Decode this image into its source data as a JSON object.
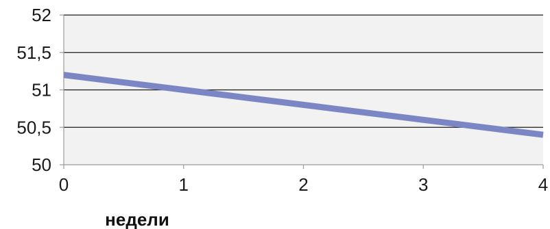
{
  "chart_data": {
    "type": "line",
    "title": "",
    "xlabel": "недели",
    "ylabel": "",
    "x": [
      0,
      1,
      2,
      3,
      4
    ],
    "series": [
      {
        "values": [
          51.2,
          51.0,
          50.8,
          50.6,
          50.4
        ]
      }
    ],
    "xlim": [
      0,
      4
    ],
    "ylim": [
      50,
      52
    ],
    "x_ticks": [
      0,
      1,
      2,
      3,
      4
    ],
    "x_tick_labels": [
      "0",
      "1",
      "2",
      "3",
      "4"
    ],
    "y_ticks": [
      50,
      50.5,
      51,
      51.5,
      52
    ],
    "y_tick_labels": [
      "50",
      "50,5",
      "51",
      "51,5",
      "52"
    ],
    "grid": "horizontal",
    "legend": "none",
    "colors": {
      "line": "#7b86c4",
      "plot_background": "#f2f2f2",
      "gridline": "#1a1a1a",
      "axis": "#9a9a9a"
    }
  }
}
